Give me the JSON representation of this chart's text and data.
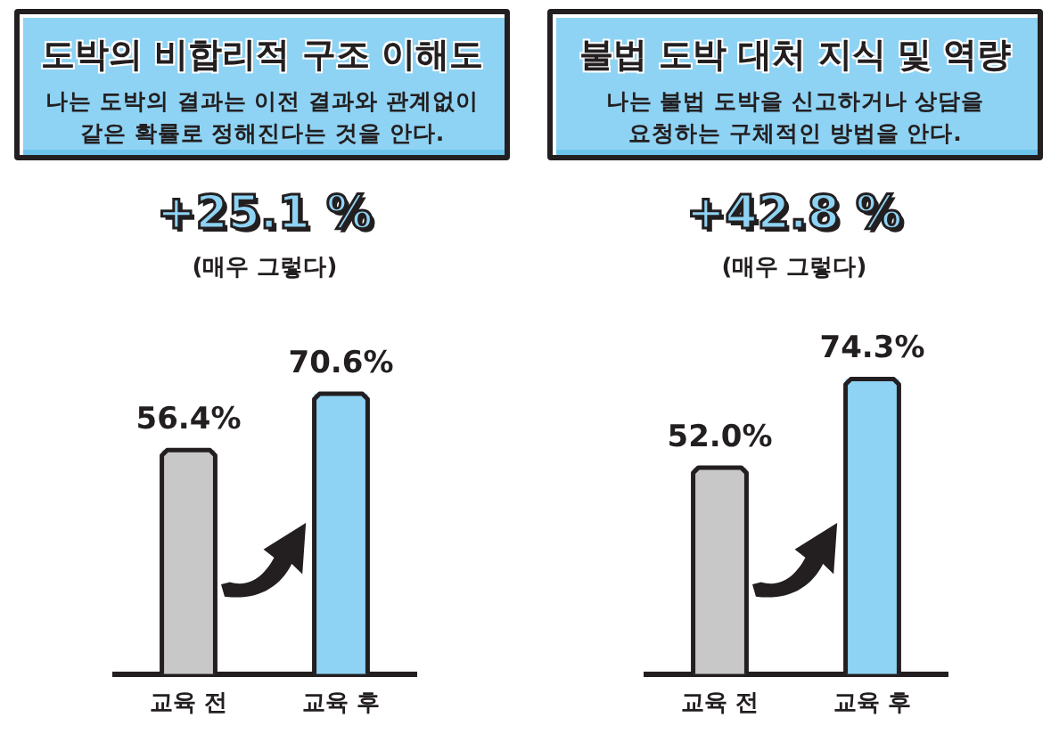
{
  "chart_data": [
    {
      "type": "bar",
      "title": "도박의 비합리적 구조 이해도",
      "subtitle": "나는 도박의 결과는 이전 결과와 관계없이\n같은 확률로 정해진다는 것을 안다.",
      "annotations": [
        "+25.1 %",
        "(매우 그렇다)"
      ],
      "categories": [
        "교육 전",
        "교육 후"
      ],
      "values": [
        56.4,
        70.6
      ],
      "colors": [
        "#c8c8c8",
        "#8fd3f4"
      ],
      "value_labels": [
        "56.4%",
        "70.6%"
      ],
      "tick_labels": "x"
    },
    {
      "type": "bar",
      "title": "불법 도박 대처 지식 및 역량",
      "subtitle": "나는 불법 도박을 신고하거나 상담을\n요청하는 구체적인 방법을 안다.",
      "annotations": [
        "+42.8 %",
        "(매우 그렇다)"
      ],
      "categories": [
        "교육 전",
        "교육 후"
      ],
      "values": [
        52.0,
        74.3
      ],
      "colors": [
        "#c8c8c8",
        "#8fd3f4"
      ],
      "value_labels": [
        "52.0%",
        "74.3%"
      ],
      "tick_labels": "x"
    }
  ]
}
